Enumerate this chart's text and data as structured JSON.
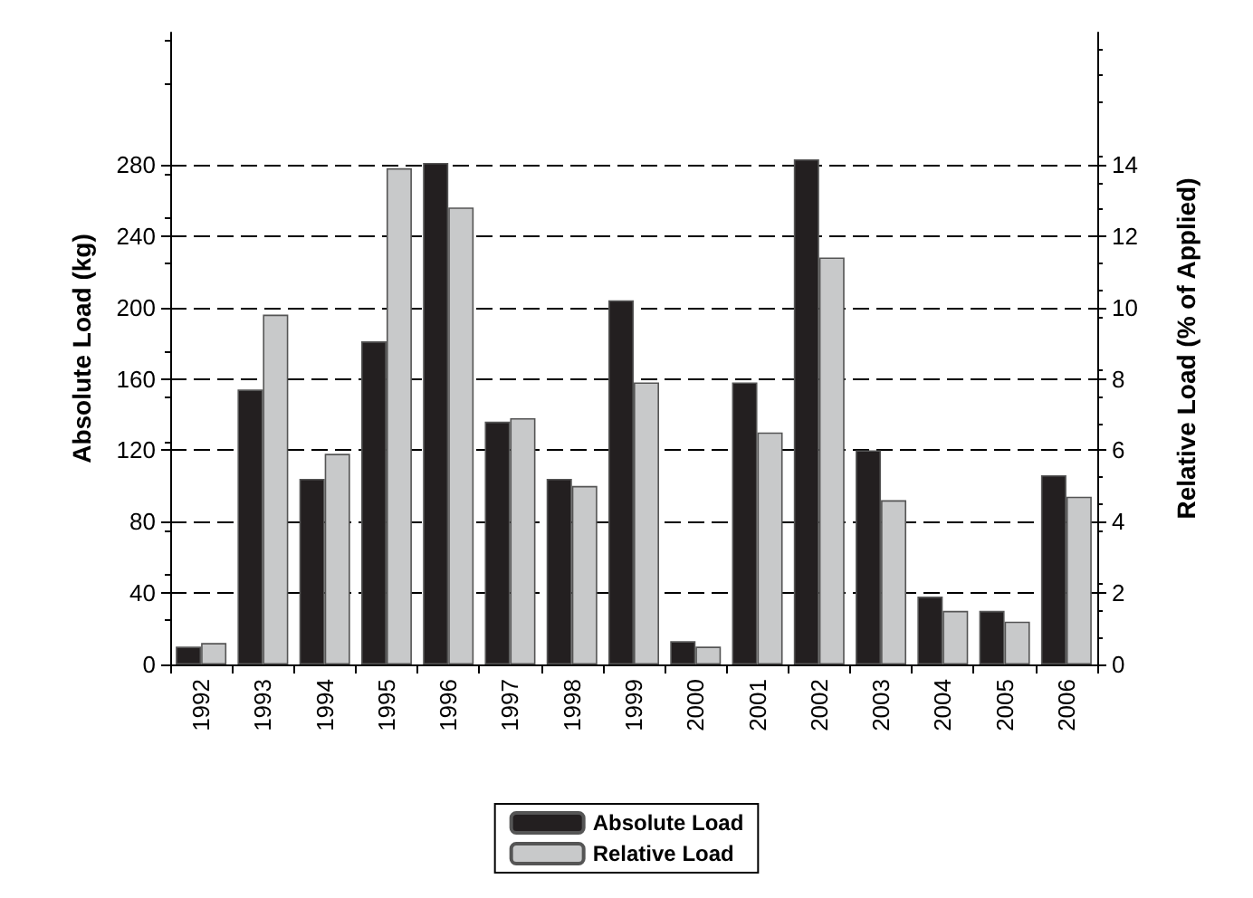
{
  "chart_data": {
    "type": "bar",
    "ylabel": "Absolute Load (kg)",
    "y2label": "Relative Load (% of Applied)",
    "categories": [
      "1992",
      "1993",
      "1994",
      "1995",
      "1996",
      "1997",
      "1998",
      "1999",
      "2000",
      "2001",
      "2002",
      "2003",
      "2004",
      "2005",
      "2006"
    ],
    "series": [
      {
        "name": "Absolute Load",
        "color": "#231f20",
        "values": [
          10,
          154,
          104,
          181,
          281,
          136,
          104,
          204,
          13,
          158,
          283,
          120,
          38,
          30,
          106
        ]
      },
      {
        "name": "Relative Load",
        "color": "#c8c9ca",
        "axis": "y2",
        "values": [
          0.6,
          9.8,
          5.9,
          13.9,
          12.8,
          6.9,
          5.0,
          7.9,
          0.5,
          6.5,
          11.4,
          4.6,
          1.5,
          1.2,
          4.7
        ]
      }
    ],
    "ylim": [
      0,
      354
    ],
    "yticks": [
      0,
      40,
      80,
      120,
      160,
      200,
      240,
      280
    ],
    "y2lim": [
      0,
      17.7
    ],
    "y2ticks": [
      0,
      2,
      4,
      6,
      8,
      10,
      12,
      14
    ],
    "grid": "y",
    "legend": "bottom"
  }
}
